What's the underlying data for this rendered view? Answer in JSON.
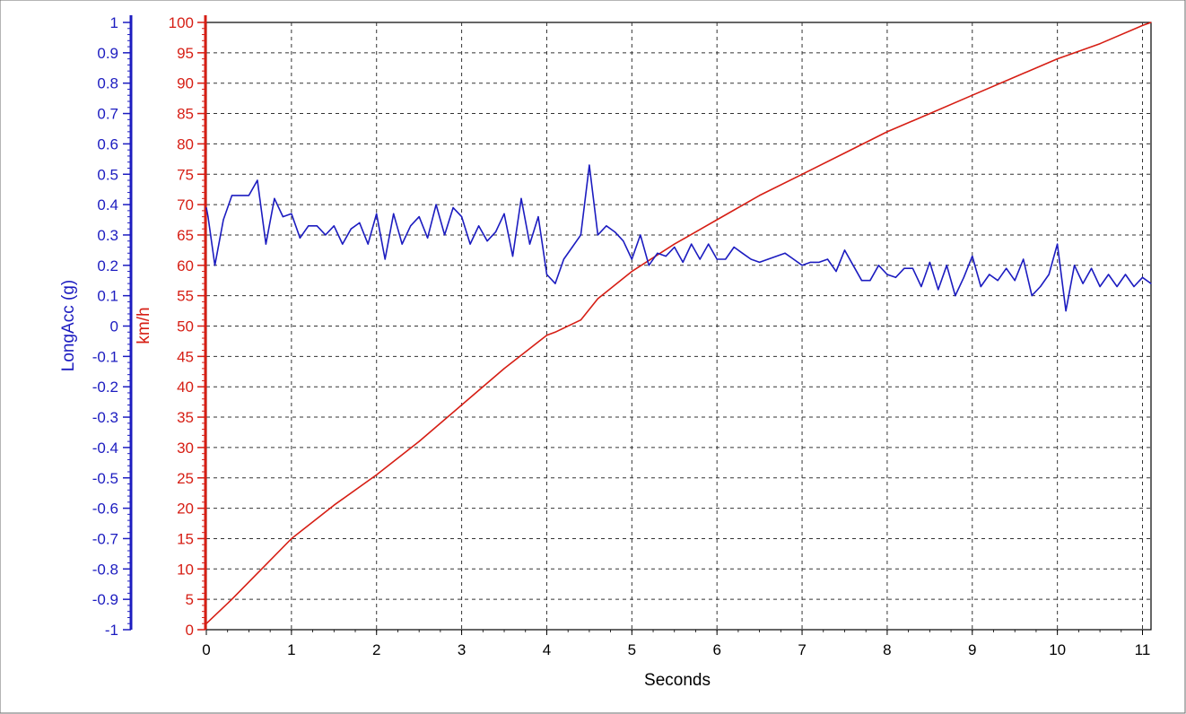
{
  "chart_data": {
    "type": "line",
    "xlabel": "Seconds",
    "xlim": [
      0,
      11.1
    ],
    "x_ticks": [
      0,
      1,
      2,
      3,
      4,
      5,
      6,
      7,
      8,
      9,
      10,
      11
    ],
    "grid": true,
    "colors": {
      "speed": "#d61e14",
      "acc": "#1c1cc0",
      "grid": "#333333",
      "frame": "#000000"
    },
    "axes": [
      {
        "id": "acc",
        "label": "LongAcc (g)",
        "color": "#1c1cc0",
        "ylim": [
          -1,
          1
        ],
        "ticks": [
          -1,
          -0.9,
          -0.8,
          -0.7,
          -0.6,
          -0.5,
          -0.4,
          -0.3,
          -0.2,
          -0.1,
          0,
          0.1,
          0.2,
          0.3,
          0.4,
          0.5,
          0.6,
          0.7,
          0.8,
          0.9,
          1
        ],
        "tick_labels": [
          "-1",
          "-0.9",
          "-0.8",
          "-0.7",
          "-0.6",
          "-0.5",
          "-0.4",
          "-0.3",
          "-0.2",
          "-0.1",
          "0",
          "0.1",
          "0.2",
          "0.3",
          "0.4",
          "0.5",
          "0.6",
          "0.7",
          "0.8",
          "0.9",
          "1"
        ]
      },
      {
        "id": "speed",
        "label": "km/h",
        "color": "#d61e14",
        "ylim": [
          0,
          100
        ],
        "ticks": [
          0,
          5,
          10,
          15,
          20,
          25,
          30,
          35,
          40,
          45,
          50,
          55,
          60,
          65,
          70,
          75,
          80,
          85,
          90,
          95,
          100
        ],
        "tick_labels": [
          "0",
          "5",
          "10",
          "15",
          "20",
          "25",
          "30",
          "35",
          "40",
          "45",
          "50",
          "55",
          "60",
          "65",
          "70",
          "75",
          "80",
          "85",
          "90",
          "95",
          "100"
        ]
      }
    ],
    "series": [
      {
        "name": "km/h",
        "axis": "speed",
        "color": "#d61e14",
        "x": [
          0,
          0.3,
          0.65,
          1.0,
          1.5,
          2.0,
          2.5,
          3.0,
          3.5,
          4.0,
          4.1,
          4.4,
          4.6,
          5.0,
          5.5,
          6.0,
          6.5,
          7.0,
          7.5,
          8.0,
          8.5,
          9.0,
          9.5,
          10.0,
          10.5,
          11.0,
          11.1
        ],
        "y": [
          1,
          5,
          10,
          15,
          20.5,
          25.5,
          31,
          37,
          43,
          48.5,
          49,
          51,
          54.5,
          59,
          63.5,
          67.5,
          71.5,
          75,
          78.5,
          82,
          85,
          88,
          91,
          94,
          96.5,
          99.5,
          100
        ]
      },
      {
        "name": "LongAcc (g)",
        "axis": "acc",
        "color": "#1c1cc0",
        "x": [
          0,
          0.02,
          0.1,
          0.2,
          0.3,
          0.4,
          0.5,
          0.6,
          0.7,
          0.8,
          0.9,
          1.0,
          1.1,
          1.2,
          1.3,
          1.4,
          1.5,
          1.6,
          1.7,
          1.8,
          1.9,
          2.0,
          2.1,
          2.2,
          2.3,
          2.4,
          2.5,
          2.6,
          2.7,
          2.8,
          2.9,
          3.0,
          3.1,
          3.2,
          3.3,
          3.4,
          3.5,
          3.6,
          3.7,
          3.8,
          3.9,
          4.0,
          4.1,
          4.2,
          4.3,
          4.4,
          4.5,
          4.6,
          4.7,
          4.8,
          4.9,
          5.0,
          5.1,
          5.2,
          5.3,
          5.4,
          5.5,
          5.6,
          5.7,
          5.8,
          5.9,
          6.0,
          6.1,
          6.2,
          6.3,
          6.4,
          6.5,
          6.6,
          6.7,
          6.8,
          6.9,
          7.0,
          7.1,
          7.2,
          7.3,
          7.4,
          7.5,
          7.6,
          7.7,
          7.8,
          7.9,
          8.0,
          8.1,
          8.2,
          8.3,
          8.4,
          8.5,
          8.6,
          8.7,
          8.8,
          8.9,
          9.0,
          9.1,
          9.2,
          9.3,
          9.4,
          9.5,
          9.6,
          9.7,
          9.8,
          9.9,
          10.0,
          10.1,
          10.2,
          10.3,
          10.4,
          10.5,
          10.6,
          10.7,
          10.8,
          10.9,
          11.0,
          11.1
        ],
        "y": [
          0.39,
          0.36,
          0.2,
          0.35,
          0.43,
          0.43,
          0.43,
          0.48,
          0.27,
          0.42,
          0.36,
          0.37,
          0.29,
          0.33,
          0.33,
          0.3,
          0.33,
          0.27,
          0.32,
          0.34,
          0.27,
          0.37,
          0.22,
          0.37,
          0.27,
          0.33,
          0.36,
          0.29,
          0.4,
          0.3,
          0.39,
          0.36,
          0.27,
          0.33,
          0.28,
          0.31,
          0.37,
          0.23,
          0.42,
          0.27,
          0.36,
          0.17,
          0.14,
          0.22,
          0.26,
          0.3,
          0.53,
          0.3,
          0.33,
          0.31,
          0.28,
          0.22,
          0.3,
          0.2,
          0.24,
          0.23,
          0.26,
          0.21,
          0.27,
          0.22,
          0.27,
          0.22,
          0.22,
          0.26,
          0.24,
          0.22,
          0.21,
          0.22,
          0.23,
          0.24,
          0.22,
          0.2,
          0.21,
          0.21,
          0.22,
          0.18,
          0.25,
          0.2,
          0.15,
          0.15,
          0.2,
          0.17,
          0.16,
          0.19,
          0.19,
          0.13,
          0.21,
          0.12,
          0.2,
          0.1,
          0.16,
          0.23,
          0.13,
          0.17,
          0.15,
          0.19,
          0.15,
          0.22,
          0.1,
          0.13,
          0.17,
          0.27,
          0.05,
          0.2,
          0.14,
          0.19,
          0.13,
          0.17,
          0.13,
          0.17,
          0.13,
          0.16,
          0.14
        ]
      }
    ]
  }
}
